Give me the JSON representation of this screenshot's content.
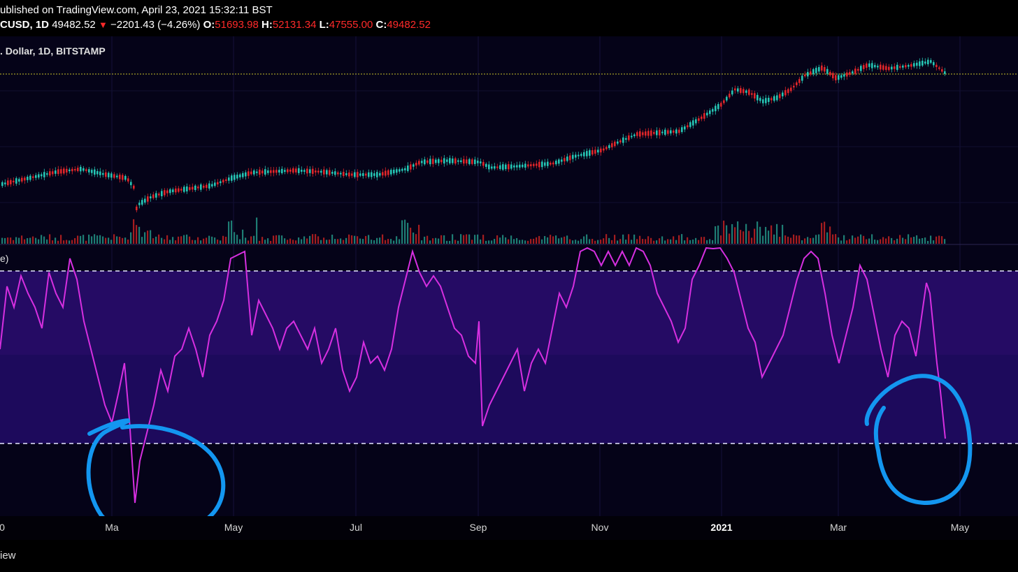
{
  "header": {
    "published": "ublished on TradingView.com, April 23, 2021 15:32:11 BST",
    "symbol": "CUSD, 1D",
    "price": "49482.52",
    "change": "−2201.43 (−4.26%)",
    "open_label": "O:",
    "open": "51693.98",
    "high_label": "H:",
    "high": "52131.34",
    "low_label": "L:",
    "low": "47555.00",
    "close_label": "C:",
    "close": "49482.52"
  },
  "chart": {
    "subtitle": ". Dollar, 1D, BITSTAMP",
    "indicator_label": "e)",
    "colors": {
      "up": "#26c6b4",
      "down": "#e0262a",
      "rsi_line": "#d62fe0",
      "band_fill": "#2a0d6e",
      "annotation": "#1396f0",
      "price_line": "#c9c22a"
    }
  },
  "x_axis": {
    "ticks": [
      "0",
      "Ma",
      "May",
      "Jul",
      "Sep",
      "Nov",
      "2021",
      "Mar",
      "May"
    ]
  },
  "footer": {
    "brand": "iew"
  }
}
